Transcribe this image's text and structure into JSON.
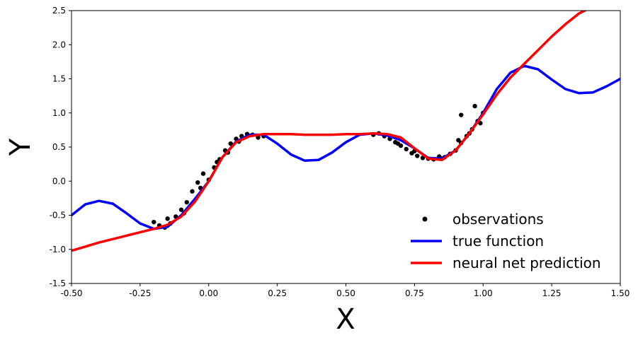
{
  "chart_data": {
    "type": "line",
    "title": "",
    "xlabel": "X",
    "ylabel": "Y",
    "xlim": [
      -0.5,
      1.5
    ],
    "ylim": [
      -1.5,
      2.5
    ],
    "grid": false,
    "legend_position": "bottom-right",
    "xticks": [
      "-0.50",
      "-0.25",
      "0.00",
      "0.25",
      "0.50",
      "0.75",
      "1.00",
      "1.25",
      "1.50"
    ],
    "yticks": [
      "-1.5",
      "-1.0",
      "-0.5",
      "0.0",
      "0.5",
      "1.0",
      "1.5",
      "2.0",
      "2.5"
    ],
    "series": [
      {
        "name": "observations",
        "kind": "scatter",
        "color": "#000000",
        "x": [
          -0.2,
          -0.18,
          -0.16,
          -0.14,
          -0.12,
          -0.1,
          -0.08,
          -0.06,
          -0.04,
          -0.02,
          0.0,
          0.02,
          0.04,
          0.06,
          0.08,
          0.1,
          0.12,
          0.14,
          0.16,
          0.18,
          0.2,
          0.6,
          0.62,
          0.64,
          0.66,
          0.68,
          0.7,
          0.72,
          0.74,
          0.76,
          0.78,
          0.8,
          0.82,
          0.84,
          0.86,
          0.88,
          0.9,
          0.92,
          0.94,
          0.96,
          0.98,
          1.0,
          -0.15,
          -0.09,
          -0.03,
          0.03,
          0.07,
          0.11,
          0.69,
          0.75,
          0.85,
          0.91,
          0.95,
          0.99,
          0.92,
          0.97
        ],
        "y": [
          -0.6,
          -0.65,
          -0.68,
          -0.62,
          -0.52,
          -0.42,
          -0.31,
          -0.15,
          -0.02,
          0.11,
          0.02,
          0.2,
          0.32,
          0.45,
          0.55,
          0.62,
          0.66,
          0.69,
          0.68,
          0.64,
          0.66,
          0.68,
          0.7,
          0.66,
          0.62,
          0.57,
          0.52,
          0.47,
          0.41,
          0.37,
          0.34,
          0.33,
          0.32,
          0.36,
          0.35,
          0.4,
          0.45,
          0.56,
          0.66,
          0.76,
          0.88,
          1.0,
          -0.55,
          -0.47,
          -0.1,
          0.28,
          0.42,
          0.58,
          0.55,
          0.44,
          0.33,
          0.6,
          0.7,
          0.85,
          0.97,
          1.1
        ]
      },
      {
        "name": "true function",
        "kind": "line",
        "color": "#0000ff",
        "x": [
          -0.5,
          -0.45,
          -0.4,
          -0.35,
          -0.3,
          -0.25,
          -0.2,
          -0.15,
          -0.1,
          -0.05,
          0.0,
          0.05,
          0.1,
          0.15,
          0.2,
          0.25,
          0.3,
          0.35,
          0.4,
          0.45,
          0.5,
          0.55,
          0.6,
          0.65,
          0.7,
          0.75,
          0.8,
          0.85,
          0.9,
          0.95,
          1.0,
          1.05,
          1.1,
          1.15,
          1.2,
          1.25,
          1.3,
          1.35,
          1.4,
          1.45,
          1.5
        ],
        "y": [
          -0.5,
          -0.34,
          -0.29,
          -0.33,
          -0.47,
          -0.62,
          -0.7,
          -0.67,
          -0.5,
          -0.26,
          0.0,
          0.35,
          0.58,
          0.68,
          0.68,
          0.55,
          0.39,
          0.3,
          0.31,
          0.42,
          0.57,
          0.68,
          0.7,
          0.67,
          0.6,
          0.48,
          0.34,
          0.33,
          0.45,
          0.7,
          1.0,
          1.35,
          1.59,
          1.69,
          1.64,
          1.49,
          1.35,
          1.29,
          1.3,
          1.39,
          1.5
        ]
      },
      {
        "name": "neural net prediction",
        "kind": "line",
        "color": "#ff0000",
        "x": [
          -0.5,
          -0.45,
          -0.4,
          -0.35,
          -0.3,
          -0.25,
          -0.2,
          -0.15,
          -0.1,
          -0.05,
          0.0,
          0.05,
          0.1,
          0.15,
          0.2,
          0.25,
          0.3,
          0.35,
          0.4,
          0.45,
          0.5,
          0.55,
          0.6,
          0.65,
          0.7,
          0.75,
          0.8,
          0.85,
          0.9,
          0.95,
          1.0,
          1.05,
          1.1,
          1.15,
          1.2,
          1.25,
          1.3,
          1.35,
          1.4
        ],
        "y": [
          -1.02,
          -0.96,
          -0.9,
          -0.85,
          -0.8,
          -0.75,
          -0.7,
          -0.64,
          -0.52,
          -0.3,
          0.0,
          0.35,
          0.57,
          0.66,
          0.69,
          0.69,
          0.69,
          0.68,
          0.68,
          0.68,
          0.69,
          0.69,
          0.7,
          0.69,
          0.64,
          0.48,
          0.33,
          0.31,
          0.45,
          0.7,
          0.98,
          1.27,
          1.52,
          1.72,
          1.92,
          2.12,
          2.3,
          2.46,
          2.56
        ]
      }
    ]
  }
}
